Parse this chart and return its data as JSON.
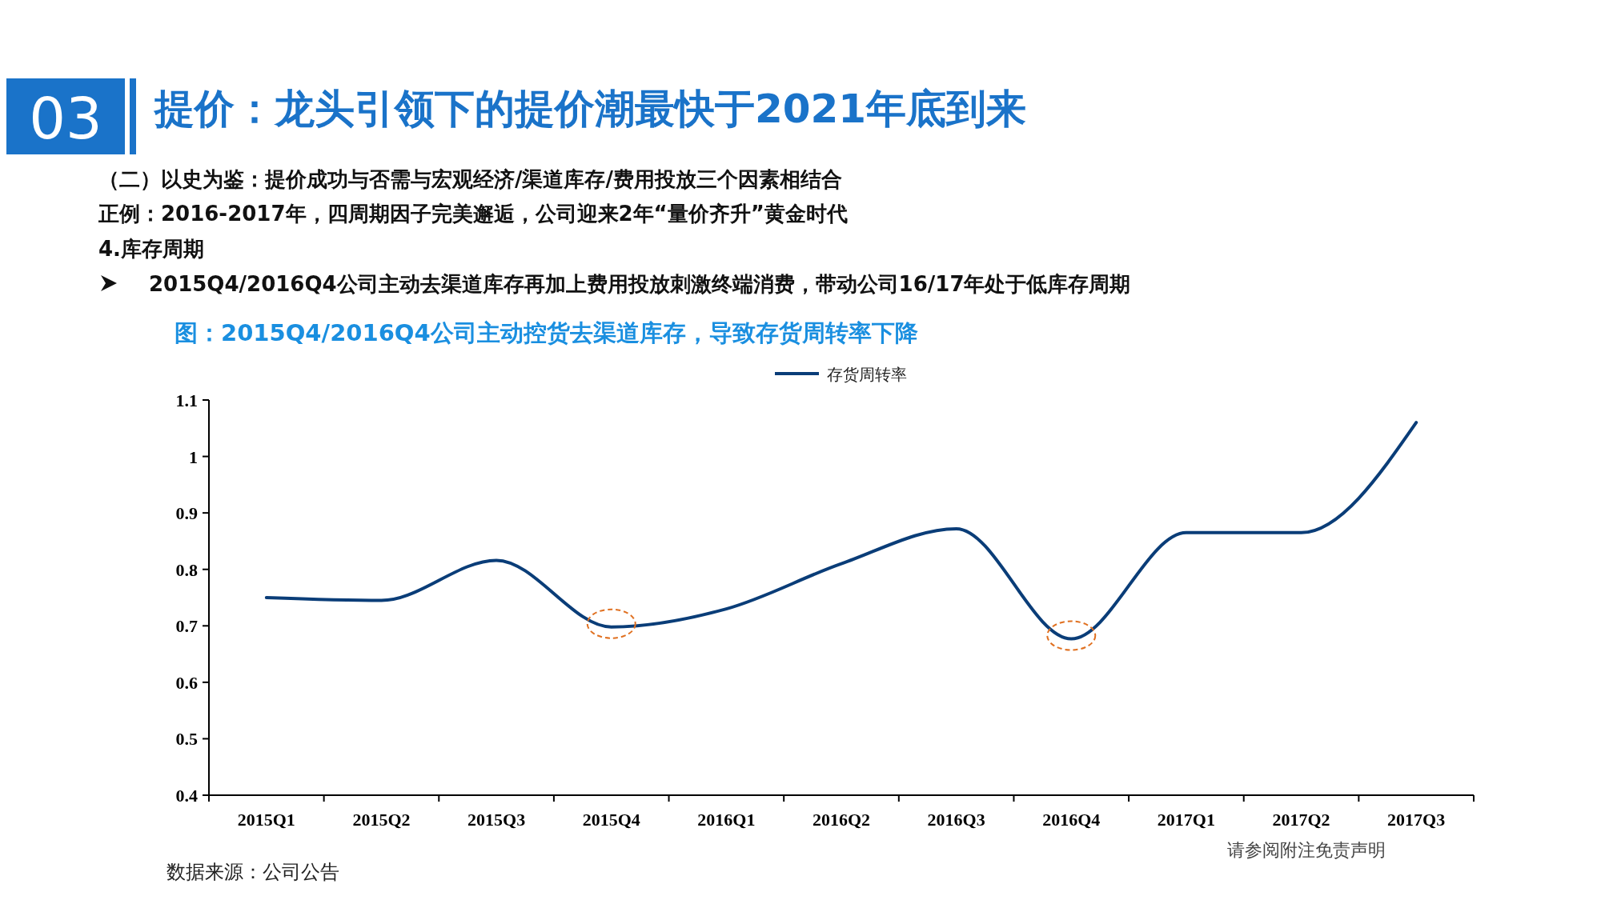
{
  "chart_data": {
    "type": "line",
    "title": "提价：龙头引领下的提价潮最快于2021年底到来",
    "subtitle": "图：2015Q4/2016Q4公司主动控货去渠道库存，导致存货周转率下降",
    "annotations": [
      "03",
      "（二）以史为鉴：提价成功与否需与宏观经济/渠道库存/费用投放三个因素相结合",
      "正例：2016-2017年，四周期因子完美邂逅，公司迎来2年“量价齐升”黄金时代",
      "4.库存周期",
      "2015Q4/2016Q4公司主动去渠道库存再加上费用投放刺激终端消费，带动公司16/17年处于低库存周期",
      "数据来源：公司公告",
      "请参阅附注免责声明"
    ],
    "categories": [
      "2015Q1",
      "2015Q2",
      "2015Q3",
      "2015Q4",
      "2016Q1",
      "2016Q2",
      "2016Q3",
      "2016Q4",
      "2017Q1",
      "2017Q2",
      "2017Q3"
    ],
    "series": [
      {
        "name": "存货周转率",
        "color": "#0a3d78",
        "values": [
          0.75,
          0.745,
          0.816,
          0.698,
          0.73,
          0.81,
          0.872,
          0.677,
          0.865,
          0.865,
          1.06
        ]
      }
    ],
    "ylim": [
      0.4,
      1.1
    ],
    "yticks": [
      {
        "value": 0.4,
        "label": "0.4"
      },
      {
        "value": 0.5,
        "label": "0.5"
      },
      {
        "value": 0.6,
        "label": "0.6"
      },
      {
        "value": 0.7,
        "label": "0.7"
      },
      {
        "value": 0.8,
        "label": "0.8"
      },
      {
        "value": 0.9,
        "label": "0.9"
      },
      {
        "value": 1,
        "label": "1"
      },
      {
        "value": 1.1,
        "label": "1.1"
      }
    ],
    "legend": "top",
    "grid": false,
    "line_style": "solid"
  }
}
